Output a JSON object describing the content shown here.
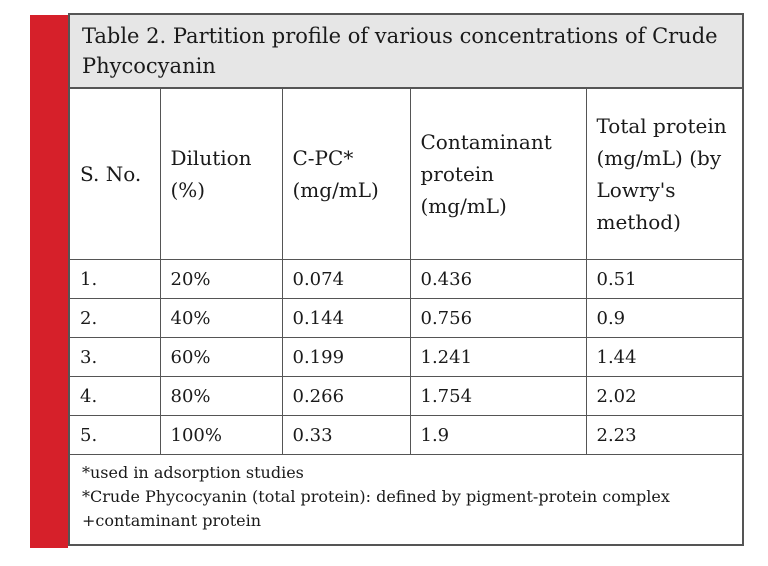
{
  "accent_color": "#d6202a",
  "title": "Table 2. Partition profile of various   concentrations of Crude Phycocyanin",
  "headers": {
    "sno": "S. No.",
    "dilution": "Dilution (%)",
    "cpc": "C-PC* (mg/mL)",
    "contaminant": "Contaminant protein (mg/mL)",
    "total": "Total protein (mg/mL) (by Lowry's method)"
  },
  "rows": [
    {
      "sno": "1.",
      "dilution": "20%",
      "cpc": "0.074",
      "contaminant": "0.436",
      "total": "0.51"
    },
    {
      "sno": "2.",
      "dilution": "40%",
      "cpc": "0.144",
      "contaminant": "0.756",
      "total": "0.9"
    },
    {
      "sno": "3.",
      "dilution": "60%",
      "cpc": "0.199",
      "contaminant": "1.241",
      "total": "1.44"
    },
    {
      "sno": "4.",
      "dilution": "80%",
      "cpc": "0.266",
      "contaminant": "1.754",
      "total": "2.02"
    },
    {
      "sno": "5.",
      "dilution": "100%",
      "cpc": "0.33",
      "contaminant": "1.9",
      "total": "2.23"
    }
  ],
  "footnotes": [
    "*used in adsorption studies",
    "*Crude Phycocyanin (total protein): defined by pigment-protein complex +contaminant protein"
  ]
}
